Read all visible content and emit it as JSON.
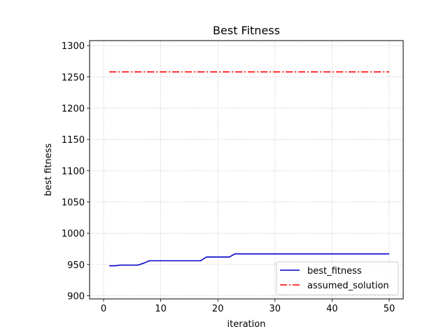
{
  "chart_data": {
    "type": "line",
    "title": "Best Fitness",
    "xlabel": "iteration",
    "ylabel": "best fitness",
    "xlim": [
      -2.45,
      52.45
    ],
    "ylim": [
      895,
      1308
    ],
    "xticks": [
      0,
      10,
      20,
      30,
      40,
      50
    ],
    "yticks": [
      900,
      950,
      1000,
      1050,
      1100,
      1150,
      1200,
      1250,
      1300
    ],
    "grid": true,
    "legend_position": "lower-right",
    "series": [
      {
        "name": "best_fitness",
        "color": "#0000cc",
        "style": "solid",
        "x": [
          1,
          2,
          3,
          4,
          5,
          6,
          7,
          8,
          9,
          10,
          11,
          12,
          13,
          14,
          15,
          16,
          17,
          18,
          19,
          20,
          21,
          22,
          23,
          24,
          25,
          26,
          27,
          28,
          29,
          30,
          31,
          32,
          33,
          34,
          35,
          36,
          37,
          38,
          39,
          40,
          41,
          42,
          43,
          44,
          45,
          46,
          47,
          48,
          49,
          50
        ],
        "values": [
          948,
          948,
          949,
          949,
          949,
          949,
          952,
          956,
          956,
          956,
          956,
          956,
          956,
          956,
          956,
          956,
          956,
          962,
          962,
          962,
          962,
          962,
          967,
          967,
          967,
          967,
          967,
          967,
          967,
          967,
          967,
          967,
          967,
          967,
          967,
          967,
          967,
          967,
          967,
          967,
          967,
          967,
          967,
          967,
          967,
          967,
          967,
          967,
          967,
          967
        ]
      },
      {
        "name": "assumed_solution",
        "color": "#ff0000",
        "style": "dashdot",
        "x": [
          1,
          2,
          3,
          4,
          5,
          6,
          7,
          8,
          9,
          10,
          11,
          12,
          13,
          14,
          15,
          16,
          17,
          18,
          19,
          20,
          21,
          22,
          23,
          24,
          25,
          26,
          27,
          28,
          29,
          30,
          31,
          32,
          33,
          34,
          35,
          36,
          37,
          38,
          39,
          40,
          41,
          42,
          43,
          44,
          45,
          46,
          47,
          48,
          49,
          50
        ],
        "values": [
          1258,
          1258,
          1258,
          1258,
          1258,
          1258,
          1258,
          1258,
          1258,
          1258,
          1258,
          1258,
          1258,
          1258,
          1258,
          1258,
          1258,
          1258,
          1258,
          1258,
          1258,
          1258,
          1258,
          1258,
          1258,
          1258,
          1258,
          1258,
          1258,
          1258,
          1258,
          1258,
          1258,
          1258,
          1258,
          1258,
          1258,
          1258,
          1258,
          1258,
          1258,
          1258,
          1258,
          1258,
          1258,
          1258,
          1258,
          1258,
          1258,
          1258
        ]
      }
    ]
  }
}
